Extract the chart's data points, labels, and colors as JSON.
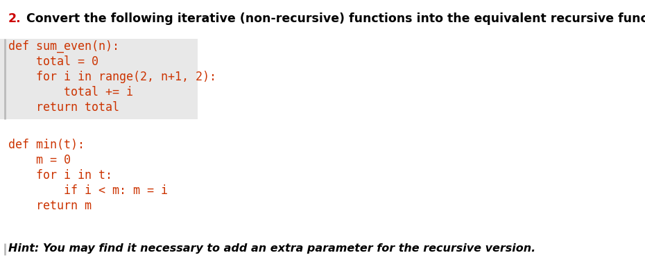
{
  "title_number": "2.",
  "title_text": " Convert the following iterative (non-recursive) functions into the equivalent recursive functions.",
  "title_number_color": "#cc0000",
  "title_text_color": "#000000",
  "title_fontsize": 12.5,
  "code_block1": [
    "def sum_even(n):",
    "    total = 0",
    "    for i in range(2, n+1, 2):",
    "        total += i",
    "    return total"
  ],
  "code_block2": [
    "def min(t):",
    "    m = 0",
    "    for i in t:",
    "        if i < m: m = i",
    "    return m"
  ],
  "hint_text": "Hint: You may find it necessary to add an extra parameter for the recursive version.",
  "hint_color": "#000000",
  "hint_fontsize": 11.5,
  "code_fontsize": 12.0,
  "code_color": "#cc3300",
  "code_bg_color": "#e8e8e8",
  "left_bar_color": "#bbbbbb",
  "bg_color": "#ffffff",
  "mono_font": "monospace",
  "fig_width": 9.3,
  "fig_height": 3.78,
  "dpi": 100
}
